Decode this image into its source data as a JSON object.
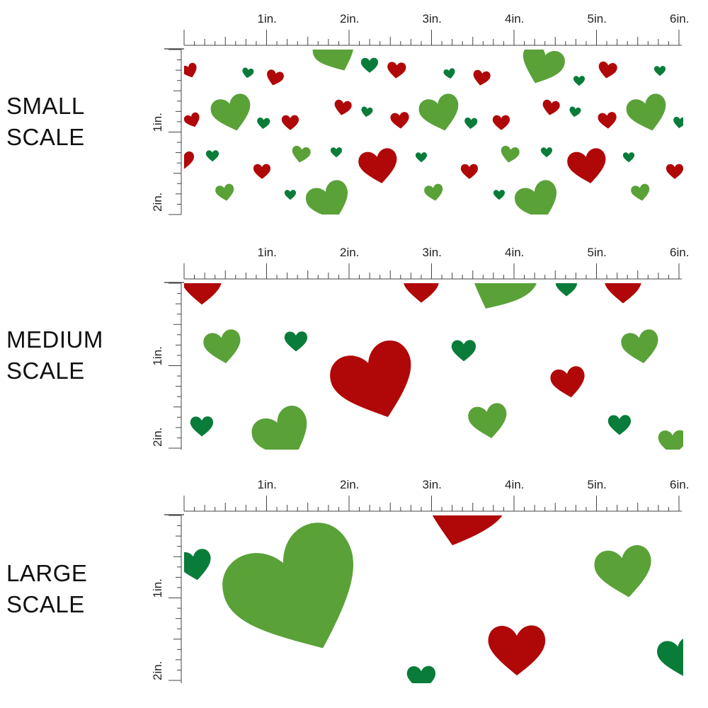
{
  "sections": [
    {
      "label_line1": "SMALL",
      "label_line2": "SCALE",
      "size": "small"
    },
    {
      "label_line1": "MEDIUM",
      "label_line2": "SCALE",
      "size": "medium"
    },
    {
      "label_line1": "LARGE",
      "label_line2": "SCALE",
      "size": "large"
    }
  ],
  "ruler": {
    "horizontal_labels": [
      "1in.",
      "2in.",
      "3in.",
      "4in.",
      "5in.",
      "6in."
    ],
    "vertical_labels": [
      "1in.",
      "2in."
    ]
  },
  "pattern": {
    "name": "hearts",
    "background": "#ffffff",
    "colors": {
      "red": "#b00708",
      "light_green": "#5aa138",
      "dark_green": "#0a7c3a"
    }
  }
}
